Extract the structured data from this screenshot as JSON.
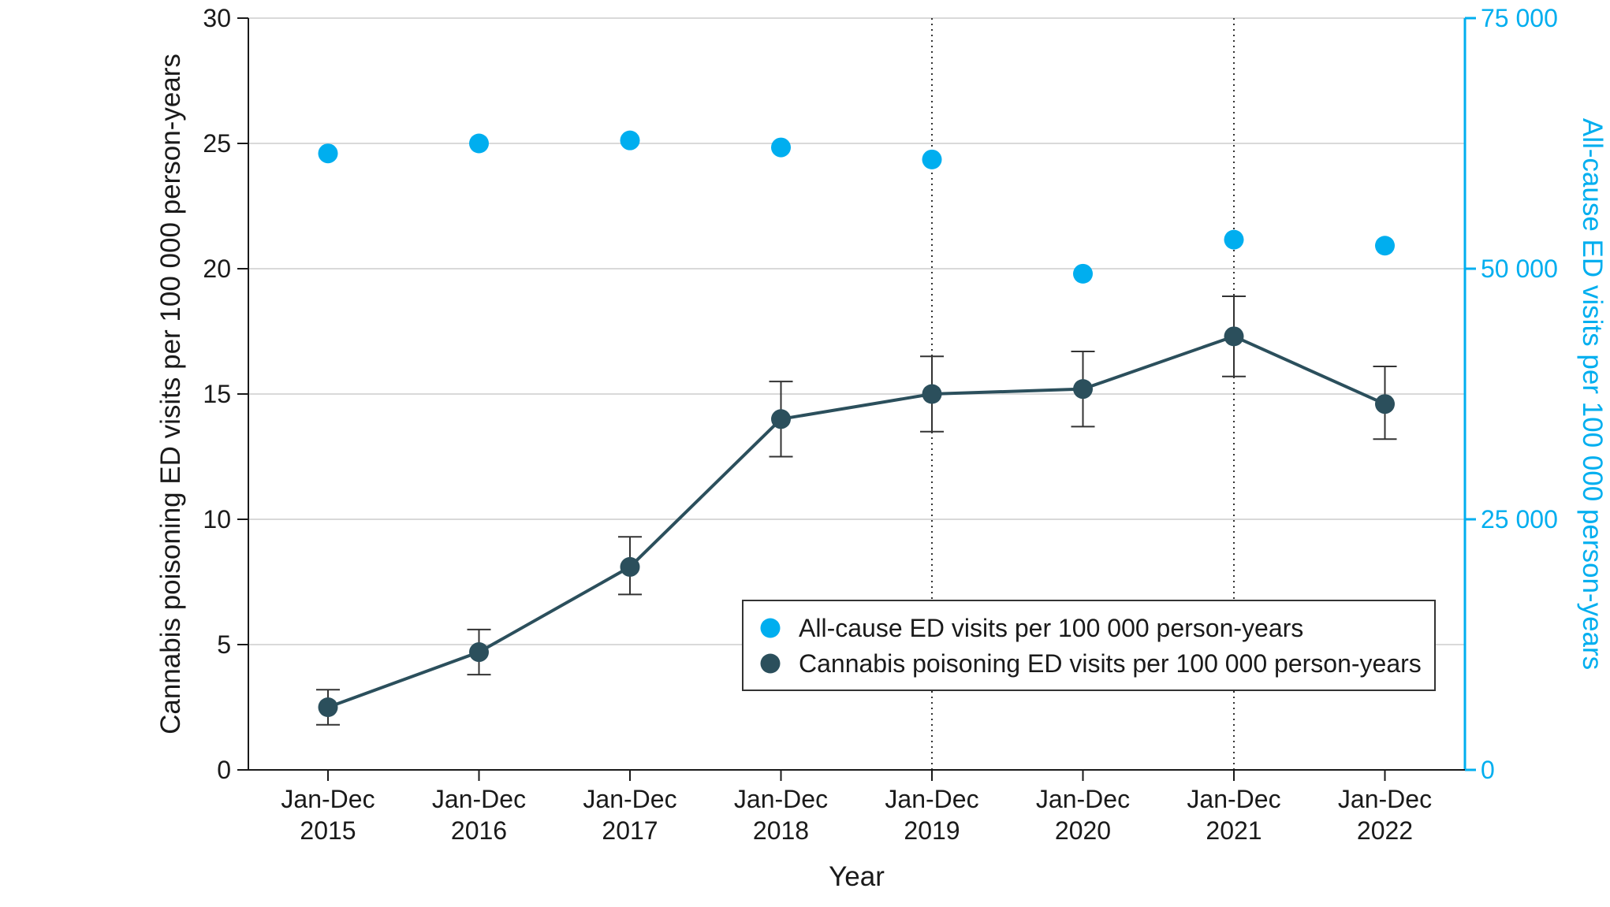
{
  "chart_data": {
    "type": "line",
    "categories": [
      [
        "Jan-Dec",
        "2015"
      ],
      [
        "Jan-Dec",
        "2016"
      ],
      [
        "Jan-Dec",
        "2017"
      ],
      [
        "Jan-Dec",
        "2018"
      ],
      [
        "Jan-Dec",
        "2019"
      ],
      [
        "Jan-Dec",
        "2020"
      ],
      [
        "Jan-Dec",
        "2021"
      ],
      [
        "Jan-Dec",
        "2022"
      ]
    ],
    "xlabel": "Year",
    "ylabel_left": "Cannabis poisoning ED visits per 100 000 person-years",
    "ylabel_right": "All-cause ED visits per 100 000 person-years",
    "ylim_left": [
      0,
      30
    ],
    "yticks_left": [
      "0",
      "5",
      "10",
      "15",
      "20",
      "25",
      "30"
    ],
    "yticks_left_values": [
      0,
      5,
      10,
      15,
      20,
      25,
      30
    ],
    "ylim_right": [
      0,
      75000
    ],
    "yticks_right": [
      "0",
      "25 000",
      "50 000",
      "75 000"
    ],
    "yticks_right_values": [
      0,
      25000,
      50000,
      75000
    ],
    "grid": "horizontal",
    "legend_position": "lower-right",
    "vertical_reference_lines": [
      "Jan-Dec 2019",
      "Jan-Dec 2021"
    ],
    "series": [
      {
        "name": "All-cause ED visits per 100 000 person-years",
        "axis": "right",
        "style": "points",
        "color": "#00aeef",
        "values": [
          61500,
          62500,
          62800,
          62100,
          60900,
          49500,
          52900,
          52300
        ]
      },
      {
        "name": "Cannabis poisoning ED visits per 100 000 person-years",
        "axis": "left",
        "style": "line-with-points",
        "color": "#2b4f5c",
        "values": [
          2.5,
          4.7,
          8.1,
          14.0,
          15.0,
          15.2,
          17.3,
          14.6
        ],
        "ci_low": [
          1.8,
          3.8,
          7.0,
          12.5,
          13.5,
          13.7,
          15.7,
          13.2
        ],
        "ci_high": [
          3.2,
          5.6,
          9.3,
          15.5,
          16.5,
          16.7,
          18.9,
          16.1
        ]
      }
    ]
  },
  "colors": {
    "all_cause": "#00aeef",
    "cannabis": "#2b4f5c",
    "grid": "#d9d9d9",
    "axis": "#1a1a1a"
  }
}
